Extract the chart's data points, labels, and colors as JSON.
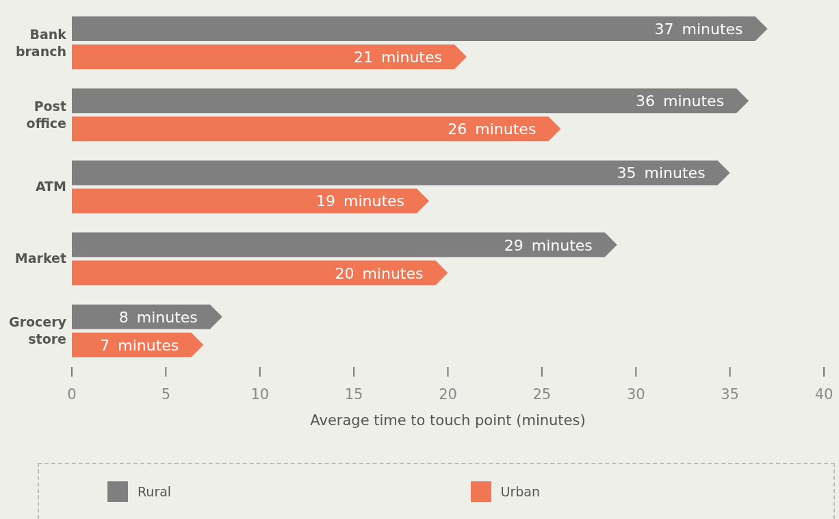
{
  "chart_data": {
    "type": "bar",
    "orientation": "horizontal",
    "xlabel": "Average time to touch point (minutes)",
    "categories": [
      "Bank branch",
      "Post office",
      "ATM",
      "Market",
      "Grocery store"
    ],
    "series": [
      {
        "name": "Rural",
        "color": "#7f7f7f",
        "values": [
          37,
          36,
          35,
          29,
          8
        ],
        "value_labels": [
          "37 minutes",
          "36 minutes",
          "35 minutes",
          "29 minutes",
          "8 minutes"
        ]
      },
      {
        "name": "Urban",
        "color": "#f07654",
        "values": [
          21,
          26,
          19,
          20,
          7
        ],
        "value_labels": [
          "21 minutes",
          "26 minutes",
          "19 minutes",
          "20 minutes",
          "7 minutes"
        ]
      }
    ],
    "xlim": [
      0,
      40
    ],
    "xticks": [
      0,
      5,
      10,
      15,
      20,
      25,
      30,
      35,
      40
    ],
    "legend": "bottom"
  }
}
